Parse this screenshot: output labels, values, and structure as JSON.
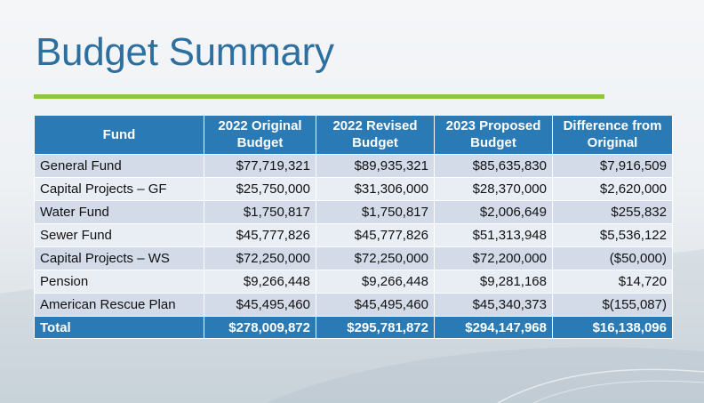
{
  "title": "Budget Summary",
  "colors": {
    "title": "#2d6f9e",
    "accent_rule": "#8dc63f",
    "table_header": "#2a7ab5",
    "row_odd": "#d3dbe9",
    "row_even": "#e9edf4"
  },
  "table": {
    "headers": [
      "Fund",
      "2022 Original Budget",
      "2022 Revised Budget",
      "2023 Proposed Budget",
      "Difference from Original"
    ],
    "rows": [
      {
        "fund": "General Fund",
        "orig": "$77,719,321",
        "revised": "$89,935,321",
        "proposed": "$85,635,830",
        "diff": "$7,916,509"
      },
      {
        "fund": "Capital Projects – GF",
        "orig": "$25,750,000",
        "revised": "$31,306,000",
        "proposed": "$28,370,000",
        "diff": "$2,620,000"
      },
      {
        "fund": "Water Fund",
        "orig": "$1,750,817",
        "revised": "$1,750,817",
        "proposed": "$2,006,649",
        "diff": "$255,832"
      },
      {
        "fund": "Sewer Fund",
        "orig": "$45,777,826",
        "revised": "$45,777,826",
        "proposed": "$51,313,948",
        "diff": "$5,536,122"
      },
      {
        "fund": "Capital Projects – WS",
        "orig": "$72,250,000",
        "revised": "$72,250,000",
        "proposed": "$72,200,000",
        "diff": "($50,000)"
      },
      {
        "fund": "Pension",
        "orig": "$9,266,448",
        "revised": "$9,266,448",
        "proposed": "$9,281,168",
        "diff": "$14,720"
      },
      {
        "fund": "American Rescue Plan",
        "orig": "$45,495,460",
        "revised": "$45,495,460",
        "proposed": "$45,340,373",
        "diff": "$(155,087)"
      }
    ],
    "total": {
      "fund": "Total",
      "orig": "$278,009,872",
      "revised": "$295,781,872",
      "proposed": "$294,147,968",
      "diff": "$16,138,096"
    }
  }
}
